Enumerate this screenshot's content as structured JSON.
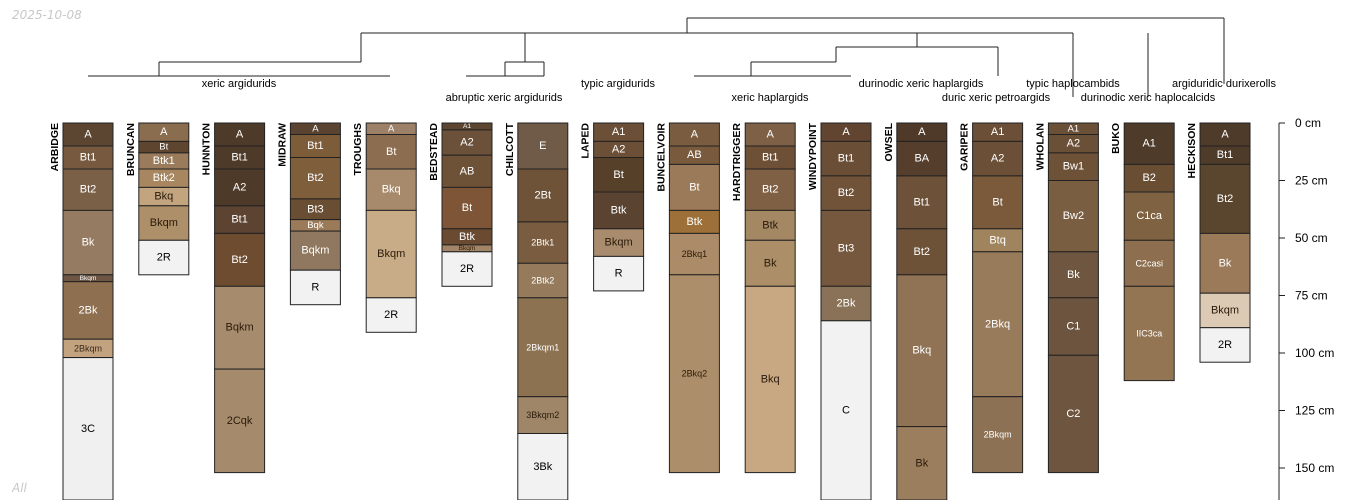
{
  "watermark": {
    "date": "2025-10-08",
    "footer": "All"
  },
  "colors": {
    "line": "#222222",
    "label": "#000000"
  },
  "groups": [
    "xeric argidurids",
    "abruptic xeric argidurids",
    "typic argidurids",
    "xeric haplargids",
    "durinodic xeric haplargids",
    "duric xeric petroargids",
    "typic haplocambids",
    "durinodic xeric haplocalcids",
    "argiduridic durixerolls"
  ],
  "depth_axis": {
    "unit": "cm",
    "ticks": [
      "0 cm",
      "25 cm",
      "50 cm",
      "75 cm",
      "100 cm",
      "125 cm",
      "150 cm"
    ],
    "tick_values": [
      0,
      25,
      50,
      75,
      100,
      125,
      150
    ]
  },
  "profiles": [
    {
      "name": "ARBIDGE",
      "horizons": [
        {
          "name": "A",
          "top": 0,
          "bottom": 10,
          "color": "#5c4632",
          "text": "#ffffff"
        },
        {
          "name": "Bt1",
          "top": 10,
          "bottom": 20,
          "color": "#76593e",
          "text": "#ffffff"
        },
        {
          "name": "Bt2",
          "top": 20,
          "bottom": 38,
          "color": "#7b6048",
          "text": "#ffffff"
        },
        {
          "name": "Bk",
          "top": 38,
          "bottom": 66,
          "color": "#957b61",
          "text": "#ffffff"
        },
        {
          "name": "Bkqm",
          "top": 66,
          "bottom": 69,
          "color": "#6e5644",
          "text": "#ffffff"
        },
        {
          "name": "2Bk",
          "top": 69,
          "bottom": 94,
          "color": "#8e6f50",
          "text": "#ffffff"
        },
        {
          "name": "2Bkqm",
          "top": 94,
          "bottom": 102,
          "color": "#c2a27f",
          "text": "#3a2a1a"
        },
        {
          "name": "3C",
          "top": 102,
          "bottom": 175,
          "color": "#f0f0f0",
          "text": "#000000"
        }
      ]
    },
    {
      "name": "BRUNCAN",
      "horizons": [
        {
          "name": "A",
          "top": 0,
          "bottom": 8,
          "color": "#8a6d4f",
          "text": "#ffffff"
        },
        {
          "name": "Bt",
          "top": 8,
          "bottom": 13,
          "color": "#5e4530",
          "text": "#ffffff"
        },
        {
          "name": "Btk1",
          "top": 13,
          "bottom": 20,
          "color": "#9a7c5c",
          "text": "#ffffff"
        },
        {
          "name": "Btk2",
          "top": 20,
          "bottom": 28,
          "color": "#a78660",
          "text": "#ffffff"
        },
        {
          "name": "Bkq",
          "top": 28,
          "bottom": 36,
          "color": "#c2a47e",
          "text": "#2a1a0a"
        },
        {
          "name": "Bkqm",
          "top": 36,
          "bottom": 51,
          "color": "#ad8f6a",
          "text": "#2a1a0a"
        },
        {
          "name": "2R",
          "top": 51,
          "bottom": 66,
          "color": "#f2f2f2",
          "text": "#000000"
        }
      ]
    },
    {
      "name": "HUNNTON",
      "horizons": [
        {
          "name": "A",
          "top": 0,
          "bottom": 10,
          "color": "#4e3a28",
          "text": "#ffffff"
        },
        {
          "name": "Bt1",
          "top": 10,
          "bottom": 20,
          "color": "#4e3a28",
          "text": "#ffffff"
        },
        {
          "name": "A2",
          "top": 20,
          "bottom": 36,
          "color": "#4e3a28",
          "text": "#ffffff"
        },
        {
          "name": "Bt1",
          "top": 36,
          "bottom": 48,
          "color": "#5c4332",
          "text": "#ffffff"
        },
        {
          "name": "Bt2",
          "top": 48,
          "bottom": 71,
          "color": "#6e4c30",
          "text": "#ffffff"
        },
        {
          "name": "Bqkm",
          "top": 71,
          "bottom": 107,
          "color": "#a68b6d",
          "text": "#2a1a0a"
        },
        {
          "name": "2Cqk",
          "top": 107,
          "bottom": 152,
          "color": "#a58a6c",
          "text": "#2a1a0a"
        }
      ]
    },
    {
      "name": "MIDRAW",
      "horizons": [
        {
          "name": "A",
          "top": 0,
          "bottom": 5,
          "color": "#5a4330",
          "text": "#ffffff"
        },
        {
          "name": "Bt1",
          "top": 5,
          "bottom": 15,
          "color": "#7d5c3a",
          "text": "#ffffff"
        },
        {
          "name": "Bt2",
          "top": 15,
          "bottom": 33,
          "color": "#7f5e3c",
          "text": "#ffffff"
        },
        {
          "name": "Bt3",
          "top": 33,
          "bottom": 42,
          "color": "#6a4e34",
          "text": "#ffffff"
        },
        {
          "name": "Bqk",
          "top": 42,
          "bottom": 47,
          "color": "#9a7a58",
          "text": "#ffffff"
        },
        {
          "name": "Bqkm",
          "top": 47,
          "bottom": 64,
          "color": "#8f785f",
          "text": "#ffffff"
        },
        {
          "name": "R",
          "top": 64,
          "bottom": 79,
          "color": "#f2f2f2",
          "text": "#000000"
        }
      ]
    },
    {
      "name": "TROUGHS",
      "horizons": [
        {
          "name": "A",
          "top": 0,
          "bottom": 5,
          "color": "#9c8168",
          "text": "#ffffff"
        },
        {
          "name": "Bt",
          "top": 5,
          "bottom": 20,
          "color": "#8d6d50",
          "text": "#ffffff"
        },
        {
          "name": "Bkq",
          "top": 20,
          "bottom": 38,
          "color": "#a7896b",
          "text": "#ffffff"
        },
        {
          "name": "Bkqm",
          "top": 38,
          "bottom": 76,
          "color": "#c8ac88",
          "text": "#2a1a0a"
        },
        {
          "name": "2R",
          "top": 76,
          "bottom": 91,
          "color": "#f2f2f2",
          "text": "#000000"
        }
      ]
    },
    {
      "name": "BEDSTEAD",
      "horizons": [
        {
          "name": "A1",
          "top": 0,
          "bottom": 3,
          "color": "#5c4632",
          "text": "#ffffff"
        },
        {
          "name": "A2",
          "top": 3,
          "bottom": 14,
          "color": "#6b503a",
          "text": "#ffffff"
        },
        {
          "name": "AB",
          "top": 14,
          "bottom": 28,
          "color": "#6e5238",
          "text": "#ffffff"
        },
        {
          "name": "Bt",
          "top": 28,
          "bottom": 46,
          "color": "#7e5536",
          "text": "#ffffff"
        },
        {
          "name": "Btk",
          "top": 46,
          "bottom": 53,
          "color": "#6a4a30",
          "text": "#ffffff"
        },
        {
          "name": "Bkqm",
          "top": 53,
          "bottom": 56,
          "color": "#a28466",
          "text": "#2a1a0a"
        },
        {
          "name": "2R",
          "top": 56,
          "bottom": 71,
          "color": "#f2f2f2",
          "text": "#000000"
        }
      ]
    },
    {
      "name": "CHILCOTT",
      "horizons": [
        {
          "name": "E",
          "top": 0,
          "bottom": 20,
          "color": "#705a48",
          "text": "#ffffff"
        },
        {
          "name": "2Bt",
          "top": 20,
          "bottom": 43,
          "color": "#6e5338",
          "text": "#ffffff"
        },
        {
          "name": "2Btk1",
          "top": 43,
          "bottom": 61,
          "color": "#7a5d40",
          "text": "#ffffff"
        },
        {
          "name": "2Btk2",
          "top": 61,
          "bottom": 76,
          "color": "#957a5c",
          "text": "#ffffff"
        },
        {
          "name": "2Bkqm1",
          "top": 76,
          "bottom": 119,
          "color": "#8d7252",
          "text": "#ffffff"
        },
        {
          "name": "3Bkqm2",
          "top": 119,
          "bottom": 135,
          "color": "#a08668",
          "text": "#2a1a0a"
        },
        {
          "name": "3Bk",
          "top": 135,
          "bottom": 175,
          "color": "#f2f2f2",
          "text": "#000000"
        }
      ]
    },
    {
      "name": "LAPED",
      "horizons": [
        {
          "name": "A1",
          "top": 0,
          "bottom": 8,
          "color": "#6b4f37",
          "text": "#ffffff"
        },
        {
          "name": "A2",
          "top": 8,
          "bottom": 15,
          "color": "#6b4f37",
          "text": "#ffffff"
        },
        {
          "name": "Bt",
          "top": 15,
          "bottom": 30,
          "color": "#57402a",
          "text": "#ffffff"
        },
        {
          "name": "Btk",
          "top": 30,
          "bottom": 46,
          "color": "#5a4330",
          "text": "#ffffff"
        },
        {
          "name": "Bkqm",
          "top": 46,
          "bottom": 58,
          "color": "#a98c6e",
          "text": "#2a1a0a"
        },
        {
          "name": "R",
          "top": 58,
          "bottom": 73,
          "color": "#f2f2f2",
          "text": "#000000"
        }
      ]
    },
    {
      "name": "BUNCELVOIR",
      "horizons": [
        {
          "name": "A",
          "top": 0,
          "bottom": 10,
          "color": "#7a5c40",
          "text": "#ffffff"
        },
        {
          "name": "AB",
          "top": 10,
          "bottom": 18,
          "color": "#7a5a3c",
          "text": "#ffffff"
        },
        {
          "name": "Bt",
          "top": 18,
          "bottom": 38,
          "color": "#9a7a58",
          "text": "#ffffff"
        },
        {
          "name": "Btk",
          "top": 38,
          "bottom": 48,
          "color": "#9c7038",
          "text": "#ffffff"
        },
        {
          "name": "2Bkq1",
          "top": 48,
          "bottom": 66,
          "color": "#ac8c68",
          "text": "#2a1a0a"
        },
        {
          "name": "2Bkq2",
          "top": 66,
          "bottom": 152,
          "color": "#ad8e6a",
          "text": "#2a1a0a"
        }
      ]
    },
    {
      "name": "HARDTRIGGER",
      "horizons": [
        {
          "name": "A",
          "top": 0,
          "bottom": 10,
          "color": "#7e6046",
          "text": "#ffffff"
        },
        {
          "name": "Bt1",
          "top": 10,
          "bottom": 20,
          "color": "#6d5036",
          "text": "#ffffff"
        },
        {
          "name": "Bt2",
          "top": 20,
          "bottom": 38,
          "color": "#7f6044",
          "text": "#ffffff"
        },
        {
          "name": "Btk",
          "top": 38,
          "bottom": 51,
          "color": "#a48864",
          "text": "#2a1a0a"
        },
        {
          "name": "Bk",
          "top": 51,
          "bottom": 71,
          "color": "#ac8e68",
          "text": "#2a1a0a"
        },
        {
          "name": "Bkq",
          "top": 71,
          "bottom": 152,
          "color": "#c8a882",
          "text": "#2a1a0a"
        }
      ]
    },
    {
      "name": "WINDYPOINT",
      "horizons": [
        {
          "name": "A",
          "top": 0,
          "bottom": 8,
          "color": "#614531",
          "text": "#ffffff"
        },
        {
          "name": "Bt1",
          "top": 8,
          "bottom": 23,
          "color": "#6b4e36",
          "text": "#ffffff"
        },
        {
          "name": "Bt2",
          "top": 23,
          "bottom": 38,
          "color": "#71533a",
          "text": "#ffffff"
        },
        {
          "name": "Bt3",
          "top": 38,
          "bottom": 71,
          "color": "#76583e",
          "text": "#ffffff"
        },
        {
          "name": "2Bk",
          "top": 71,
          "bottom": 86,
          "color": "#8a7258",
          "text": "#ffffff"
        },
        {
          "name": "C",
          "top": 86,
          "bottom": 175,
          "color": "#f2f2f2",
          "text": "#000000"
        }
      ]
    },
    {
      "name": "OWSEL",
      "horizons": [
        {
          "name": "A",
          "top": 0,
          "bottom": 8,
          "color": "#4f3a29",
          "text": "#ffffff"
        },
        {
          "name": "BA",
          "top": 8,
          "bottom": 23,
          "color": "#553e2c",
          "text": "#ffffff"
        },
        {
          "name": "Bt1",
          "top": 23,
          "bottom": 46,
          "color": "#6d5138",
          "text": "#ffffff"
        },
        {
          "name": "Bt2",
          "top": 46,
          "bottom": 66,
          "color": "#6e5238",
          "text": "#ffffff"
        },
        {
          "name": "Bkq",
          "top": 66,
          "bottom": 132,
          "color": "#8f7354",
          "text": "#ffffff"
        },
        {
          "name": "Bk",
          "top": 132,
          "bottom": 175,
          "color": "#9b7e5e",
          "text": "#2a1a0a"
        }
      ]
    },
    {
      "name": "GARIPER",
      "horizons": [
        {
          "name": "A1",
          "top": 0,
          "bottom": 8,
          "color": "#6b4f37",
          "text": "#ffffff"
        },
        {
          "name": "A2",
          "top": 8,
          "bottom": 23,
          "color": "#6b4f37",
          "text": "#ffffff"
        },
        {
          "name": "Bt",
          "top": 23,
          "bottom": 46,
          "color": "#7a5a3a",
          "text": "#ffffff"
        },
        {
          "name": "Btq",
          "top": 46,
          "bottom": 56,
          "color": "#a0845e",
          "text": "#ffffff"
        },
        {
          "name": "2Bkq",
          "top": 56,
          "bottom": 119,
          "color": "#977b5a",
          "text": "#ffffff"
        },
        {
          "name": "2Bkqm",
          "top": 119,
          "bottom": 152,
          "color": "#8c7155",
          "text": "#ffffff"
        }
      ]
    },
    {
      "name": "WHOLAN",
      "horizons": [
        {
          "name": "A1",
          "top": 0,
          "bottom": 5,
          "color": "#6b5038",
          "text": "#ffffff"
        },
        {
          "name": "A2",
          "top": 5,
          "bottom": 13,
          "color": "#6b5038",
          "text": "#ffffff"
        },
        {
          "name": "Bw1",
          "top": 13,
          "bottom": 25,
          "color": "#6e5238",
          "text": "#ffffff"
        },
        {
          "name": "Bw2",
          "top": 25,
          "bottom": 56,
          "color": "#7a5e42",
          "text": "#ffffff"
        },
        {
          "name": "Bk",
          "top": 56,
          "bottom": 76,
          "color": "#6e5640",
          "text": "#ffffff"
        },
        {
          "name": "C1",
          "top": 76,
          "bottom": 101,
          "color": "#6c543e",
          "text": "#ffffff"
        },
        {
          "name": "C2",
          "top": 101,
          "bottom": 152,
          "color": "#6e5540",
          "text": "#ffffff"
        }
      ]
    },
    {
      "name": "BUKO",
      "horizons": [
        {
          "name": "A1",
          "top": 0,
          "bottom": 18,
          "color": "#4f3b2a",
          "text": "#ffffff"
        },
        {
          "name": "B2",
          "top": 18,
          "bottom": 30,
          "color": "#6a4e34",
          "text": "#ffffff"
        },
        {
          "name": "C1ca",
          "top": 30,
          "bottom": 51,
          "color": "#7f6242",
          "text": "#ffffff"
        },
        {
          "name": "C2casi",
          "top": 51,
          "bottom": 71,
          "color": "#8d6f50",
          "text": "#ffffff"
        },
        {
          "name": "IIC3ca",
          "top": 71,
          "bottom": 112,
          "color": "#937554",
          "text": "#ffffff"
        }
      ]
    },
    {
      "name": "HECKISON",
      "horizons": [
        {
          "name": "A",
          "top": 0,
          "bottom": 10,
          "color": "#4f3b2a",
          "text": "#ffffff"
        },
        {
          "name": "Bt1",
          "top": 10,
          "bottom": 18,
          "color": "#4f3b2a",
          "text": "#ffffff"
        },
        {
          "name": "Bt2",
          "top": 18,
          "bottom": 48,
          "color": "#5a452e",
          "text": "#ffffff"
        },
        {
          "name": "Bk",
          "top": 48,
          "bottom": 74,
          "color": "#9a7a58",
          "text": "#ffffff"
        },
        {
          "name": "Bkqm",
          "top": 74,
          "bottom": 89,
          "color": "#dccab4",
          "text": "#2a1a0a"
        },
        {
          "name": "2R",
          "top": 89,
          "bottom": 104,
          "color": "#f2f2f2",
          "text": "#000000"
        }
      ]
    }
  ]
}
